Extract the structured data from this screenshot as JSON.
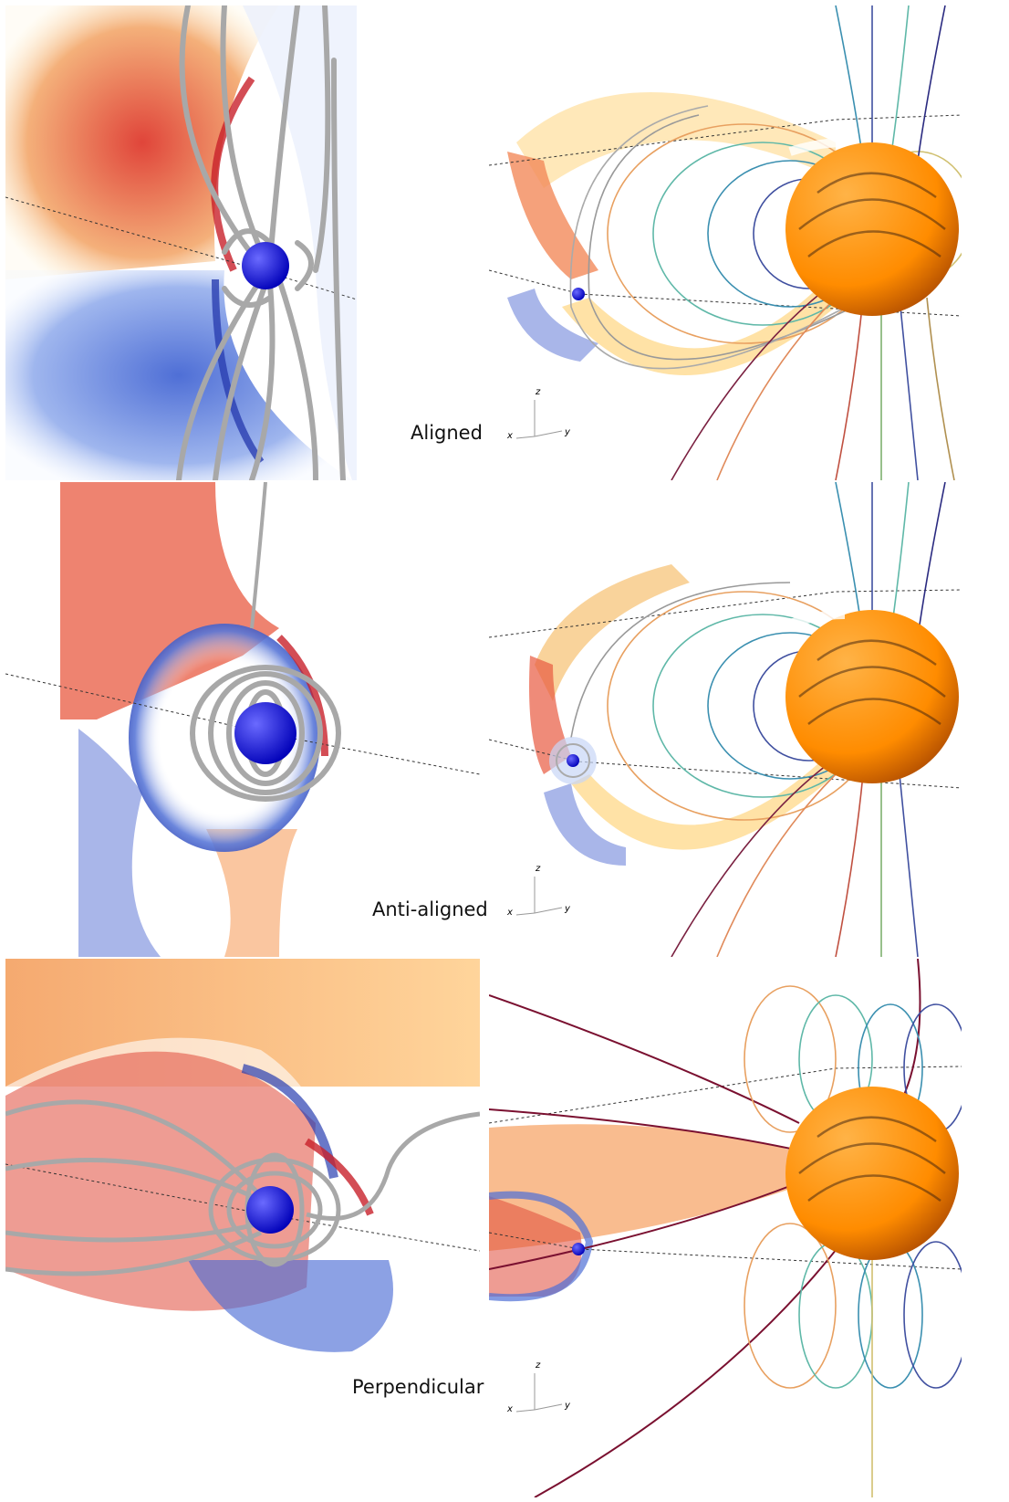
{
  "rows": [
    {
      "label": "Aligned"
    },
    {
      "label": "Anti-aligned"
    },
    {
      "label": "Perpendicular"
    }
  ],
  "axes": {
    "z": "z",
    "x": "x",
    "y": "y"
  },
  "colors": {
    "planet": "#1a1aff",
    "star": "#ff8c00",
    "star_shade": "#c45a00",
    "field_tube": "#a8a8a8",
    "positive": "#d9382a",
    "negative": "#3c5fc8",
    "mid": "#fff5c0"
  }
}
